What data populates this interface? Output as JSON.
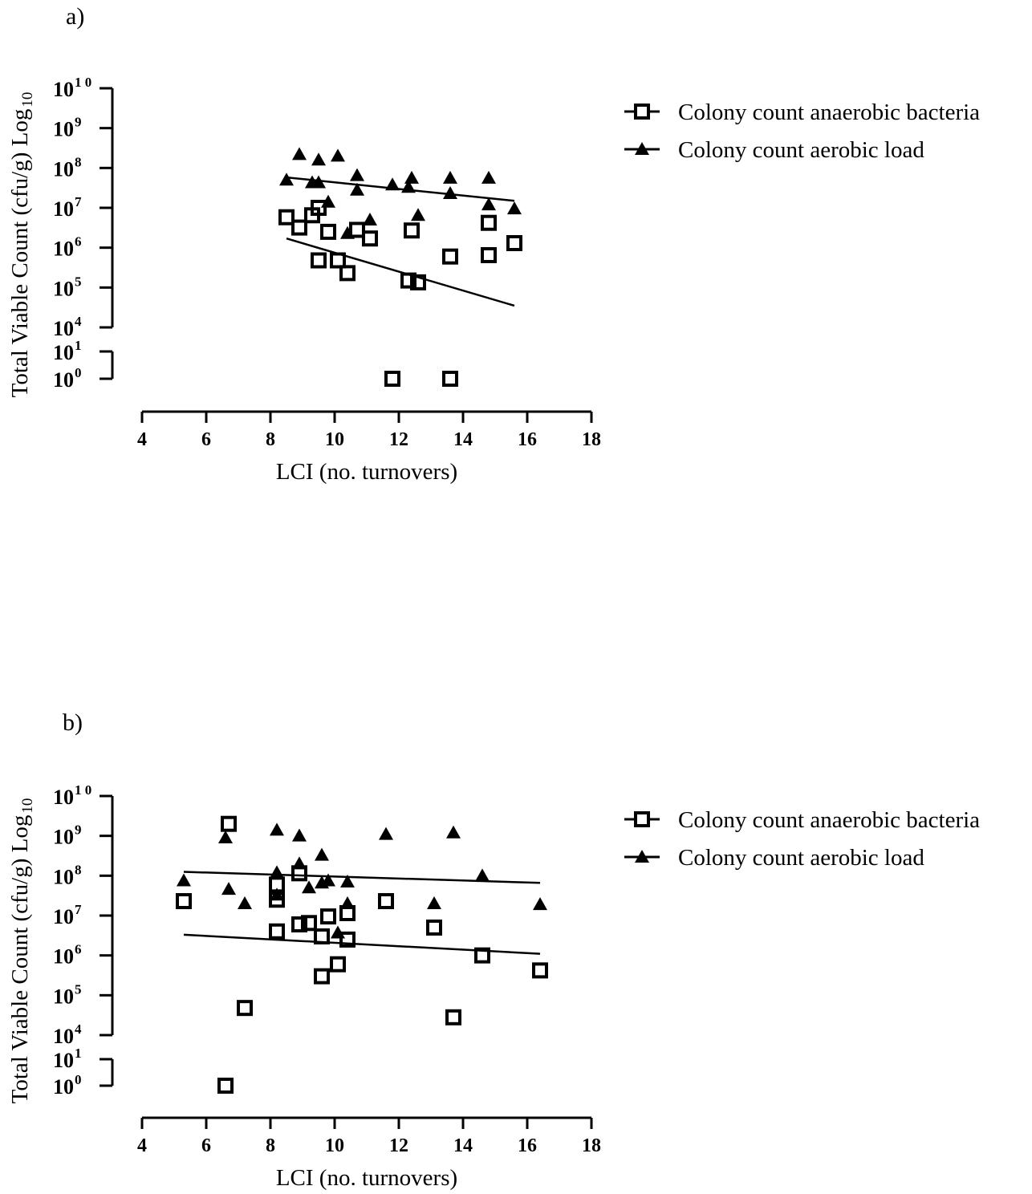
{
  "chart_data": [
    {
      "type": "scatter",
      "panel_label": "a)",
      "xlabel": "LCI (no. turnovers)",
      "ylabel": "Total Viable Count (cfu/g) Log",
      "ylabel_subscript": "10",
      "xlim": [
        4,
        18
      ],
      "x_ticks": [
        "4",
        "6",
        "8",
        "10",
        "12",
        "14",
        "16",
        "18"
      ],
      "y_scale": "log10 with axis break between 10^1 and 10^4",
      "y_tick_labels": [
        {
          "base": "10",
          "exp": "1 0"
        },
        {
          "base": "10",
          "exp": "9"
        },
        {
          "base": "10",
          "exp": "8"
        },
        {
          "base": "10",
          "exp": "7"
        },
        {
          "base": "10",
          "exp": "6"
        },
        {
          "base": "10",
          "exp": "5"
        },
        {
          "base": "10",
          "exp": "4"
        },
        {
          "base": "10",
          "exp": "1"
        },
        {
          "base": "10",
          "exp": "0"
        }
      ],
      "legend_position": "right",
      "series": [
        {
          "name": "Colony count anaerobic bacteria",
          "marker": "open-square",
          "points": [
            [
              8.5,
              5800000.0
            ],
            [
              8.9,
              3200000.0
            ],
            [
              9.3,
              6500000.0
            ],
            [
              9.5,
              10000000.0
            ],
            [
              9.5,
              480000.0
            ],
            [
              9.8,
              2500000.0
            ],
            [
              10.1,
              480000.0
            ],
            [
              10.4,
              230000.0
            ],
            [
              10.7,
              2800000.0
            ],
            [
              11.1,
              1700000.0
            ],
            [
              11.8,
              1
            ],
            [
              12.3,
              150000.0
            ],
            [
              12.4,
              2700000.0
            ],
            [
              12.6,
              135000.0
            ],
            [
              13.6,
              600000.0
            ],
            [
              13.6,
              1
            ],
            [
              14.8,
              4200000.0
            ],
            [
              14.8,
              650000.0
            ],
            [
              15.6,
              1300000.0
            ]
          ],
          "fit": [
            [
              8.5,
              1700000.0
            ],
            [
              15.6,
              35000.0
            ]
          ]
        },
        {
          "name": "Colony count aerobic load",
          "marker": "filled-triangle",
          "points": [
            [
              8.5,
              50000000.0
            ],
            [
              8.9,
              220000000.0
            ],
            [
              9.3,
              43000000.0
            ],
            [
              9.5,
              160000000.0
            ],
            [
              9.5,
              43000000.0
            ],
            [
              9.8,
              14000000.0
            ],
            [
              10.1,
              200000000.0
            ],
            [
              10.4,
              2300000.0
            ],
            [
              10.7,
              65000000.0
            ],
            [
              10.7,
              28000000.0
            ],
            [
              11.1,
              5000000.0
            ],
            [
              11.8,
              38000000.0
            ],
            [
              12.3,
              33000000.0
            ],
            [
              12.4,
              56000000.0
            ],
            [
              12.6,
              6500000.0
            ],
            [
              13.6,
              56000000.0
            ],
            [
              13.6,
              23000000.0
            ],
            [
              14.8,
              56000000.0
            ],
            [
              14.8,
              12000000.0
            ],
            [
              15.6,
              9500000.0
            ]
          ],
          "fit": [
            [
              8.5,
              58000000.0
            ],
            [
              15.6,
              15000000.0
            ]
          ]
        }
      ]
    },
    {
      "type": "scatter",
      "panel_label": "b)",
      "xlabel": "LCI (no. turnovers)",
      "ylabel": "Total Viable Count (cfu/g) Log",
      "ylabel_subscript": "10",
      "xlim": [
        4,
        18
      ],
      "x_ticks": [
        "4",
        "6",
        "8",
        "10",
        "12",
        "14",
        "16",
        "18"
      ],
      "y_scale": "log10 with axis break between 10^1 and 10^4",
      "y_tick_labels": [
        {
          "base": "10",
          "exp": "1 0"
        },
        {
          "base": "10",
          "exp": "9"
        },
        {
          "base": "10",
          "exp": "8"
        },
        {
          "base": "10",
          "exp": "7"
        },
        {
          "base": "10",
          "exp": "6"
        },
        {
          "base": "10",
          "exp": "5"
        },
        {
          "base": "10",
          "exp": "4"
        },
        {
          "base": "10",
          "exp": "1"
        },
        {
          "base": "10",
          "exp": "0"
        }
      ],
      "legend_position": "right",
      "series": [
        {
          "name": "Colony count anaerobic bacteria",
          "marker": "open-square",
          "points": [
            [
              5.3,
              23000000.0
            ],
            [
              6.6,
              1
            ],
            [
              6.7,
              2000000000.0
            ],
            [
              7.2,
              48000.0
            ],
            [
              8.2,
              60000000.0
            ],
            [
              8.2,
              25000000.0
            ],
            [
              8.2,
              4000000.0
            ],
            [
              8.9,
              6000000.0
            ],
            [
              8.9,
              115000000.0
            ],
            [
              9.2,
              6500000.0
            ],
            [
              9.6,
              3000000.0
            ],
            [
              9.6,
              300000.0
            ],
            [
              9.8,
              9500000.0
            ],
            [
              10.1,
              600000.0
            ],
            [
              10.4,
              2500000.0
            ],
            [
              10.4,
              11500000.0
            ],
            [
              11.6,
              23000000.0
            ],
            [
              13.1,
              5000000.0
            ],
            [
              13.7,
              28000.0
            ],
            [
              14.6,
              1000000.0
            ],
            [
              16.4,
              420000.0
            ]
          ],
          "fit": [
            [
              5.3,
              3300000.0
            ],
            [
              16.4,
              1100000.0
            ]
          ]
        },
        {
          "name": "Colony count aerobic load",
          "marker": "filled-triangle",
          "points": [
            [
              5.3,
              75000000.0
            ],
            [
              6.6,
              900000000.0
            ],
            [
              6.7,
              46000000.0
            ],
            [
              7.2,
              20000000.0
            ],
            [
              8.2,
              1400000000.0
            ],
            [
              8.2,
              120000000.0
            ],
            [
              8.2,
              33000000.0
            ],
            [
              8.9,
              1000000000.0
            ],
            [
              8.9,
              200000000.0
            ],
            [
              9.2,
              50000000.0
            ],
            [
              9.6,
              330000000.0
            ],
            [
              9.6,
              66000000.0
            ],
            [
              9.8,
              75000000.0
            ],
            [
              10.1,
              3700000.0
            ],
            [
              10.4,
              70000000.0
            ],
            [
              10.4,
              20000000.0
            ],
            [
              11.6,
              1100000000.0
            ],
            [
              13.1,
              20000000.0
            ],
            [
              13.7,
              1200000000.0
            ],
            [
              14.6,
              100000000.0
            ],
            [
              16.4,
              19000000.0
            ]
          ],
          "fit": [
            [
              5.3,
              125000000.0
            ],
            [
              16.4,
              66000000.0
            ]
          ]
        }
      ]
    }
  ]
}
